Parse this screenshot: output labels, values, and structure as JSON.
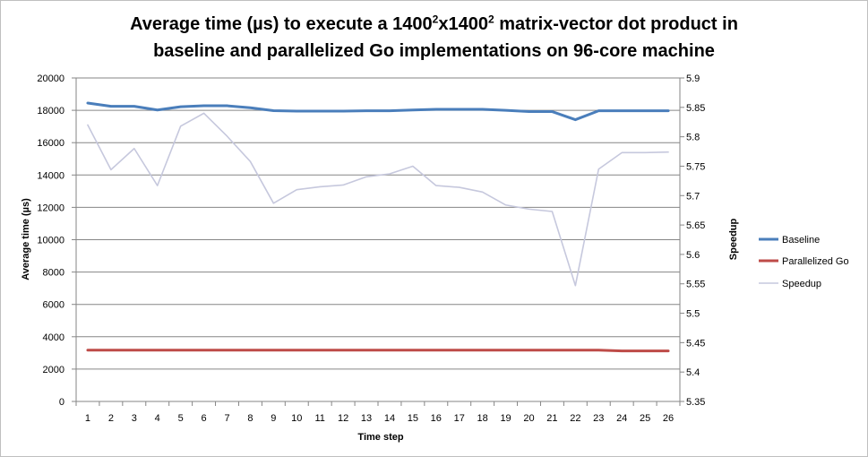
{
  "chart_data": {
    "type": "line",
    "title_parts": {
      "line1_a": "Average time (µs) to execute a 1400",
      "line1_sup1": "2",
      "line1_b": "x1400",
      "line1_sup2": "2",
      "line1_c": " matrix-vector dot product in",
      "line2": "baseline and parallelized Go implementations on 96-core machine"
    },
    "xlabel": "Time step",
    "ylabel": "Average time (µs)",
    "y2label": "Speedup",
    "x": [
      1,
      2,
      3,
      4,
      5,
      6,
      7,
      8,
      9,
      10,
      11,
      12,
      13,
      14,
      15,
      16,
      17,
      18,
      19,
      20,
      21,
      22,
      23,
      24,
      25,
      26
    ],
    "ylim": [
      0,
      20000
    ],
    "yticks": [
      0,
      2000,
      4000,
      6000,
      8000,
      10000,
      12000,
      14000,
      16000,
      18000,
      20000
    ],
    "y2lim": [
      5.35,
      5.9
    ],
    "y2ticks": [
      "5.35",
      "5.4",
      "5.45",
      "5.5",
      "5.55",
      "5.6",
      "5.65",
      "5.7",
      "5.75",
      "5.8",
      "5.85",
      "5.9"
    ],
    "grid": true,
    "legend_position": "right",
    "series": [
      {
        "name": "Baseline",
        "axis": "left",
        "color": "#4a7ebb",
        "values": [
          18450,
          18250,
          18250,
          18020,
          18220,
          18280,
          18280,
          18160,
          17980,
          17950,
          17950,
          17950,
          17970,
          17970,
          18020,
          18060,
          18060,
          18060,
          18000,
          17920,
          17920,
          17420,
          17970,
          17970,
          17970,
          17970
        ]
      },
      {
        "name": "Parallelized Go",
        "axis": "left",
        "color": "#be4b48",
        "values": [
          3170,
          3170,
          3170,
          3170,
          3170,
          3170,
          3170,
          3170,
          3170,
          3170,
          3170,
          3170,
          3170,
          3170,
          3170,
          3170,
          3170,
          3170,
          3170,
          3170,
          3170,
          3170,
          3170,
          3120,
          3120,
          3120
        ]
      },
      {
        "name": "Speedup",
        "axis": "right",
        "color": "#c6c8dd",
        "values": [
          5.82,
          5.744,
          5.78,
          5.717,
          5.818,
          5.84,
          5.801,
          5.758,
          5.687,
          5.71,
          5.715,
          5.718,
          5.732,
          5.737,
          5.75,
          5.717,
          5.714,
          5.706,
          5.684,
          5.677,
          5.673,
          5.547,
          5.745,
          5.773,
          5.773,
          5.774
        ]
      }
    ]
  }
}
